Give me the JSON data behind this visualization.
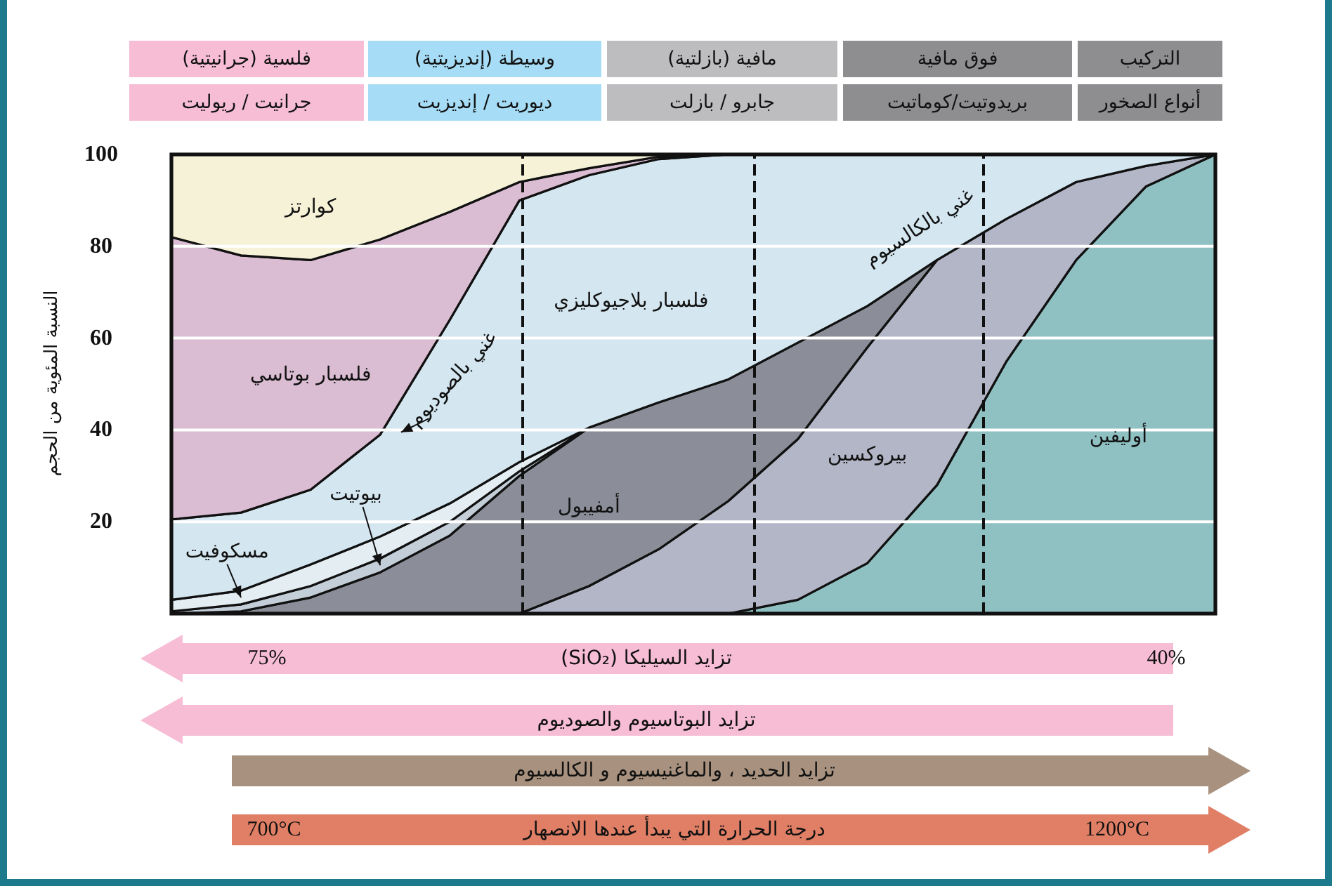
{
  "chart_data": {
    "type": "area",
    "stacked": true,
    "ylabel": "النسبة المئوية من الحجم",
    "categories": [
      null,
      null,
      null,
      null,
      null,
      null,
      null,
      null,
      null,
      null,
      null,
      null,
      null,
      null,
      null,
      null
    ],
    "ylim": [
      0,
      100
    ],
    "yticks": [
      20,
      40,
      60,
      80,
      100
    ],
    "grid": "y",
    "series": [
      {
        "name": "أوليفين",
        "color": "#8fc0c2",
        "values": [
          null,
          null,
          null,
          null,
          null,
          null,
          null,
          null,
          0,
          3,
          11,
          28,
          55,
          77,
          93,
          100
        ]
      },
      {
        "name": "بيروكسين",
        "color": "#b3b6c6",
        "values": [
          null,
          null,
          null,
          null,
          null,
          0,
          6,
          14,
          24.5,
          35,
          47,
          49,
          31,
          17,
          4.5,
          0
        ]
      },
      {
        "name": "أمفيبول",
        "color": "#8b8e99",
        "values": [
          0,
          0.5,
          3.5,
          9,
          17,
          30,
          34.5,
          32,
          26.5,
          21,
          9,
          0,
          null,
          null,
          null,
          null
        ]
      },
      {
        "name": "بيوتيت",
        "color": "#c3ced8",
        "values": [
          0.5,
          1.5,
          2.5,
          3,
          3,
          1,
          0,
          null,
          null,
          null,
          null,
          null,
          null,
          null,
          null,
          null
        ]
      },
      {
        "name": "مسكوفيت",
        "color": "#e4edf2",
        "values": [
          2.5,
          3,
          4.7,
          4.8,
          4,
          2,
          0,
          null,
          null,
          null,
          null,
          null,
          null,
          null,
          null,
          null
        ]
      },
      {
        "name": "فلسبار بلاجيوكليزي",
        "color": "#d4e6f0",
        "values": [
          17.5,
          17,
          16.3,
          22.2,
          40,
          57,
          55,
          53,
          49,
          41,
          33,
          23,
          14,
          6,
          2.5,
          0
        ]
      },
      {
        "name": "فلسبار بوتاسي",
        "color": "#dbbdd3",
        "values": [
          61.5,
          56,
          50,
          42.5,
          23.5,
          4,
          1.5,
          0.5,
          0,
          null,
          null,
          null,
          null,
          null,
          null,
          null
        ]
      },
      {
        "name": "كوارتز",
        "color": "#f6f2d8",
        "values": [
          18,
          22,
          23,
          18.5,
          12.5,
          6,
          3,
          0.5,
          0,
          null,
          null,
          null,
          null,
          null,
          null,
          null
        ]
      }
    ],
    "annotations": [
      "التركيب",
      "فوق مافية",
      "مافية (بازلتية)",
      "وسيطة (إنديزيتية)",
      "فلسية (جرانيتية)",
      "أنواع الصخور",
      "بريدوتيت/كوماتيت",
      "جابرو / بازلت",
      "ديوريت / إنديزيت",
      "جرانيت / ريوليت",
      "تزايد السيليكا (SiO₂)",
      "75%",
      "40%",
      "تزايد البوتاسيوم والصوديوم",
      "تزايد الحديد ، والماغنيسيوم و الكالسيوم",
      "700°C",
      "1200°C",
      "درجة الحرارة التي يبدأ عندها الانصهار",
      "غني بالصوديوم",
      "غني بالكالسيوم"
    ]
  }
}
